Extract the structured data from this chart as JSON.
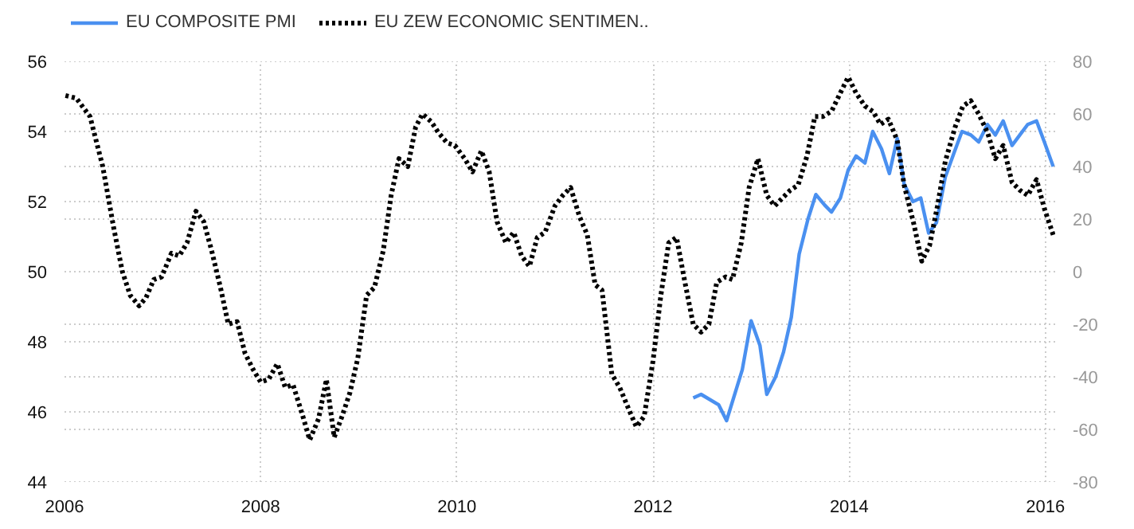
{
  "chart_data": {
    "type": "line",
    "legend": "top left",
    "grid": true,
    "xlim": [
      2006,
      2016.1
    ],
    "xticks": [
      2006,
      2008,
      2010,
      2012,
      2014,
      2016
    ],
    "ylim": [
      44,
      56
    ],
    "yticks": [
      44,
      46,
      48,
      50,
      52,
      54,
      56
    ],
    "y2lim": [
      -80,
      80
    ],
    "y2ticks": [
      -80,
      -60,
      -40,
      -20,
      0,
      20,
      40,
      60,
      80
    ],
    "series": [
      {
        "name": "EU COMPOSITE PMI",
        "color": "#4a90f0",
        "line_style": "solid",
        "x": [
          2012.41,
          2012.49,
          2012.67,
          2012.75,
          2012.91,
          2013.0,
          2013.09,
          2013.16,
          2013.25,
          2013.33,
          2013.41,
          2013.49,
          2013.58,
          2013.66,
          2013.75,
          2013.82,
          2013.91,
          2013.99,
          2014.07,
          2014.16,
          2014.24,
          2014.33,
          2014.41,
          2014.49,
          2014.56,
          2014.65,
          2014.73,
          2014.81,
          2014.89,
          2014.98,
          2015.07,
          2015.15,
          2015.24,
          2015.32,
          2015.41,
          2015.49,
          2015.57,
          2015.66,
          2015.74,
          2015.82,
          2015.91,
          2015.99,
          2016.08
        ],
        "values": [
          46.4,
          46.5,
          46.2,
          45.75,
          47.2,
          48.6,
          47.9,
          46.5,
          47.0,
          47.7,
          48.7,
          50.5,
          51.5,
          52.2,
          51.9,
          51.7,
          52.1,
          52.9,
          53.3,
          53.1,
          54.0,
          53.5,
          52.8,
          53.8,
          52.5,
          52.0,
          52.1,
          51.1,
          51.4,
          52.7,
          53.4,
          54.0,
          53.9,
          53.7,
          54.2,
          53.9,
          54.3,
          53.6,
          53.9,
          54.2,
          54.3,
          53.7,
          53.0
        ]
      },
      {
        "name": "EU ZEW ECONOMIC SENTIMEN..",
        "color": "#000000",
        "line_style": "dotted",
        "axis": "y2",
        "x": [
          2006.01,
          2006.12,
          2006.26,
          2006.39,
          2006.5,
          2006.59,
          2006.67,
          2006.76,
          2006.83,
          2006.91,
          2006.99,
          2007.09,
          2007.17,
          2007.25,
          2007.34,
          2007.42,
          2007.5,
          2007.59,
          2007.67,
          2007.76,
          2007.84,
          2007.92,
          2008.0,
          2008.08,
          2008.17,
          2008.25,
          2008.33,
          2008.43,
          2008.5,
          2008.59,
          2008.67,
          2008.75,
          2008.83,
          2008.91,
          2008.99,
          2009.08,
          2009.16,
          2009.25,
          2009.33,
          2009.41,
          2009.5,
          2009.58,
          2009.65,
          2009.74,
          2009.81,
          2009.9,
          2009.98,
          2010.08,
          2010.16,
          2010.25,
          2010.33,
          2010.41,
          2010.5,
          2010.58,
          2010.66,
          2010.74,
          2010.82,
          2010.9,
          2011.0,
          2011.08,
          2011.16,
          2011.25,
          2011.33,
          2011.41,
          2011.48,
          2011.58,
          2011.66,
          2011.76,
          2011.83,
          2011.91,
          2012.0,
          2012.08,
          2012.16,
          2012.24,
          2012.32,
          2012.41,
          2012.49,
          2012.57,
          2012.65,
          2012.74,
          2012.81,
          2012.9,
          2012.98,
          2013.07,
          2013.16,
          2013.24,
          2013.32,
          2013.4,
          2013.48,
          2013.57,
          2013.65,
          2013.73,
          2013.82,
          2013.91,
          2013.99,
          2014.07,
          2014.16,
          2014.24,
          2014.32,
          2014.4,
          2014.49,
          2014.56,
          2014.66,
          2014.74,
          2014.82,
          2014.9,
          2014.98,
          2015.08,
          2015.16,
          2015.24,
          2015.32,
          2015.41,
          2015.49,
          2015.57,
          2015.66,
          2015.74,
          2015.82,
          2015.91,
          2015.99,
          2016.08
        ],
        "values": [
          67,
          66,
          59,
          40,
          17,
          0,
          -9,
          -13,
          -10,
          -3,
          -2,
          7,
          6,
          11,
          23,
          19,
          8,
          -6,
          -20,
          -19,
          -31,
          -37,
          -42,
          -41,
          -35,
          -44,
          -43,
          -55,
          -64,
          -56,
          -41,
          -63,
          -55,
          -46,
          -33,
          -9,
          -6,
          8,
          29,
          43,
          40,
          55,
          60,
          57,
          53,
          49,
          48,
          43,
          38,
          46,
          38,
          19,
          11,
          15,
          6,
          2,
          13,
          15,
          25,
          29,
          32,
          21,
          14,
          -5,
          -7,
          -39,
          -44,
          -53,
          -59,
          -55,
          -34,
          -9,
          11,
          13,
          -3,
          -20,
          -23,
          -20,
          -4,
          -2,
          -3,
          11,
          32,
          43,
          29,
          25,
          28,
          31,
          33,
          44,
          59,
          59,
          61,
          68,
          74,
          68,
          63,
          61,
          56,
          58,
          50,
          33,
          18,
          4,
          10,
          25,
          42,
          55,
          63,
          65,
          60,
          53,
          43,
          48,
          34,
          31,
          29,
          35,
          24,
          14
        ]
      }
    ]
  }
}
